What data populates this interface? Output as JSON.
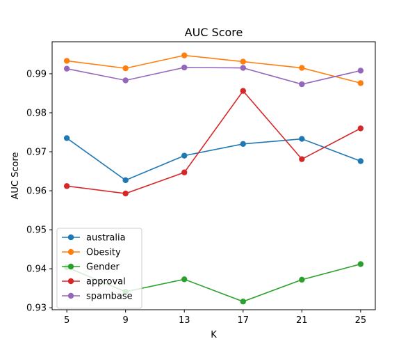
{
  "chart_data": {
    "type": "line",
    "title": "AUC Score",
    "xlabel": "K",
    "ylabel": "AUC Score",
    "x": [
      5,
      9,
      13,
      17,
      21,
      25
    ],
    "xticks": [
      "5",
      "9",
      "13",
      "17",
      "21",
      "25"
    ],
    "yticks": [
      "0.93",
      "0.94",
      "0.95",
      "0.96",
      "0.97",
      "0.98",
      "0.99"
    ],
    "xlim": [
      4.0,
      26.0
    ],
    "ylim": [
      0.9295,
      0.9982
    ],
    "grid": false,
    "legend_position": "lower-left",
    "series": [
      {
        "name": "australia",
        "color": "#1f77b4",
        "values": [
          0.9735,
          0.9627,
          0.969,
          0.972,
          0.9733,
          0.9676
        ]
      },
      {
        "name": "Obesity",
        "color": "#ff7f0e",
        "values": [
          0.9933,
          0.9914,
          0.9947,
          0.9931,
          0.9915,
          0.9876
        ]
      },
      {
        "name": "Gender",
        "color": "#2ca02c",
        "values": [
          0.9404,
          0.9341,
          0.9373,
          0.9316,
          0.9372,
          0.9412
        ]
      },
      {
        "name": "approval",
        "color": "#d62728",
        "values": [
          0.9612,
          0.9593,
          0.9647,
          0.9856,
          0.9681,
          0.976
        ]
      },
      {
        "name": "spambase",
        "color": "#9467bd",
        "values": [
          0.9913,
          0.9883,
          0.9916,
          0.9915,
          0.9873,
          0.9908
        ]
      }
    ]
  }
}
